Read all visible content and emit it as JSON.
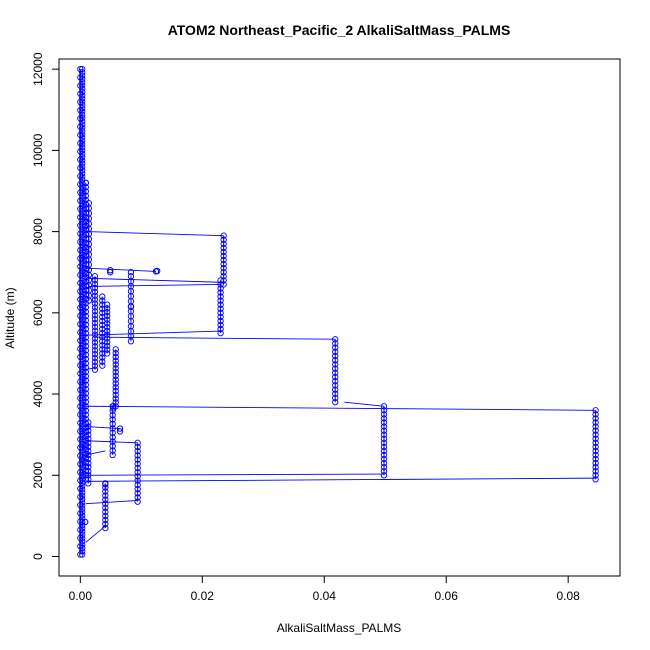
{
  "chart_data": {
    "type": "scatter",
    "title": "ATOM2 Northeast_Pacific_2 AlkaliSaltMass_PALMS",
    "xlabel": "AlkaliSaltMass_PALMS",
    "ylabel": "Altitude (m)",
    "xlim": [
      -0.0035,
      0.0885
    ],
    "ylim": [
      -480,
      12250
    ],
    "xticks": [
      0.0,
      0.02,
      0.04,
      0.06,
      0.08
    ],
    "xtick_labels": [
      "0.00",
      "0.02",
      "0.04",
      "0.06",
      "0.08"
    ],
    "yticks": [
      0,
      2000,
      4000,
      6000,
      8000,
      10000,
      12000
    ],
    "ytick_labels": [
      "0",
      "2000",
      "4000",
      "6000",
      "8000",
      "10000",
      "12000"
    ],
    "series_color": "#0000ff",
    "marker": "open-circle",
    "connected": true,
    "legend": "none",
    "grid": false,
    "segments": [
      {
        "x": 0.0003,
        "y": [
          50,
          12000
        ],
        "n": 150
      },
      {
        "x": 0.0,
        "y": [
          50,
          12000
        ],
        "n": 60
      },
      {
        "x": 0.0009,
        "y": [
          1900,
          9200
        ],
        "n": 70
      },
      {
        "x": 0.0014,
        "y": [
          6300,
          8700
        ],
        "n": 20
      },
      {
        "x": 0.0024,
        "y": [
          4600,
          6900
        ],
        "n": 25
      },
      {
        "x": 0.0036,
        "y": [
          4700,
          6400
        ],
        "n": 18
      },
      {
        "x": 0.0044,
        "y": [
          5000,
          6200
        ],
        "n": 14
      },
      {
        "x": 0.0058,
        "y": [
          3700,
          5100
        ],
        "n": 16
      },
      {
        "x": 0.0083,
        "y": [
          5300,
          6900
        ],
        "n": 14
      },
      {
        "x": 0.0235,
        "y": [
          6700,
          7900
        ],
        "n": 13
      },
      {
        "x": 0.023,
        "y": [
          5500,
          6800
        ],
        "n": 14
      },
      {
        "x": 0.0418,
        "y": [
          3800,
          5350
        ],
        "n": 16
      },
      {
        "x": 0.0498,
        "y": [
          2000,
          3700
        ],
        "n": 18
      },
      {
        "x": 0.0845,
        "y": [
          1900,
          3600
        ],
        "n": 18
      },
      {
        "x": 0.0094,
        "y": [
          1350,
          2800
        ],
        "n": 15
      },
      {
        "x": 0.0053,
        "y": [
          2500,
          3700
        ],
        "n": 12
      },
      {
        "x": 0.0041,
        "y": [
          700,
          1800
        ],
        "n": 12
      },
      {
        "x": 0.0013,
        "y": [
          1800,
          3300
        ],
        "n": 16
      }
    ],
    "points": [
      {
        "x": 0.0049,
        "y": 7050
      },
      {
        "x": 0.0049,
        "y": 7000
      },
      {
        "x": 0.0124,
        "y": 7020
      },
      {
        "x": 0.0126,
        "y": 7030
      },
      {
        "x": 0.0083,
        "y": 7000
      },
      {
        "x": 0.0083,
        "y": 6150
      },
      {
        "x": 0.0065,
        "y": 3150
      },
      {
        "x": 0.0065,
        "y": 3080
      },
      {
        "x": 0.0054,
        "y": 3700
      },
      {
        "x": 0.0054,
        "y": 3650
      },
      {
        "x": 0.0008,
        "y": 850
      },
      {
        "x": 0.0041,
        "y": 1780
      },
      {
        "x": 0.0009,
        "y": 9200
      }
    ],
    "connectors": [
      [
        0.0009,
        8000,
        0.0235,
        7900
      ],
      [
        0.0009,
        7100,
        0.0124,
        7020
      ],
      [
        0.0014,
        6850,
        0.0235,
        6750
      ],
      [
        0.0014,
        6650,
        0.023,
        6700
      ],
      [
        0.0009,
        5450,
        0.023,
        5550
      ],
      [
        0.0024,
        5400,
        0.0418,
        5350
      ],
      [
        0.0433,
        3800,
        0.0498,
        3700
      ],
      [
        0.0009,
        3700,
        0.0845,
        3600
      ],
      [
        0.0009,
        2000,
        0.0498,
        2030
      ],
      [
        0.0009,
        1850,
        0.0845,
        1930
      ],
      [
        0.0009,
        2850,
        0.0094,
        2800
      ],
      [
        0.0009,
        1300,
        0.0094,
        1380
      ],
      [
        0.0009,
        350,
        0.0041,
        750
      ],
      [
        0.0009,
        2500,
        0.0041,
        2600
      ],
      [
        0.0009,
        4600,
        0.0024,
        4650
      ],
      [
        0.0009,
        3200,
        0.0065,
        3150
      ]
    ]
  }
}
